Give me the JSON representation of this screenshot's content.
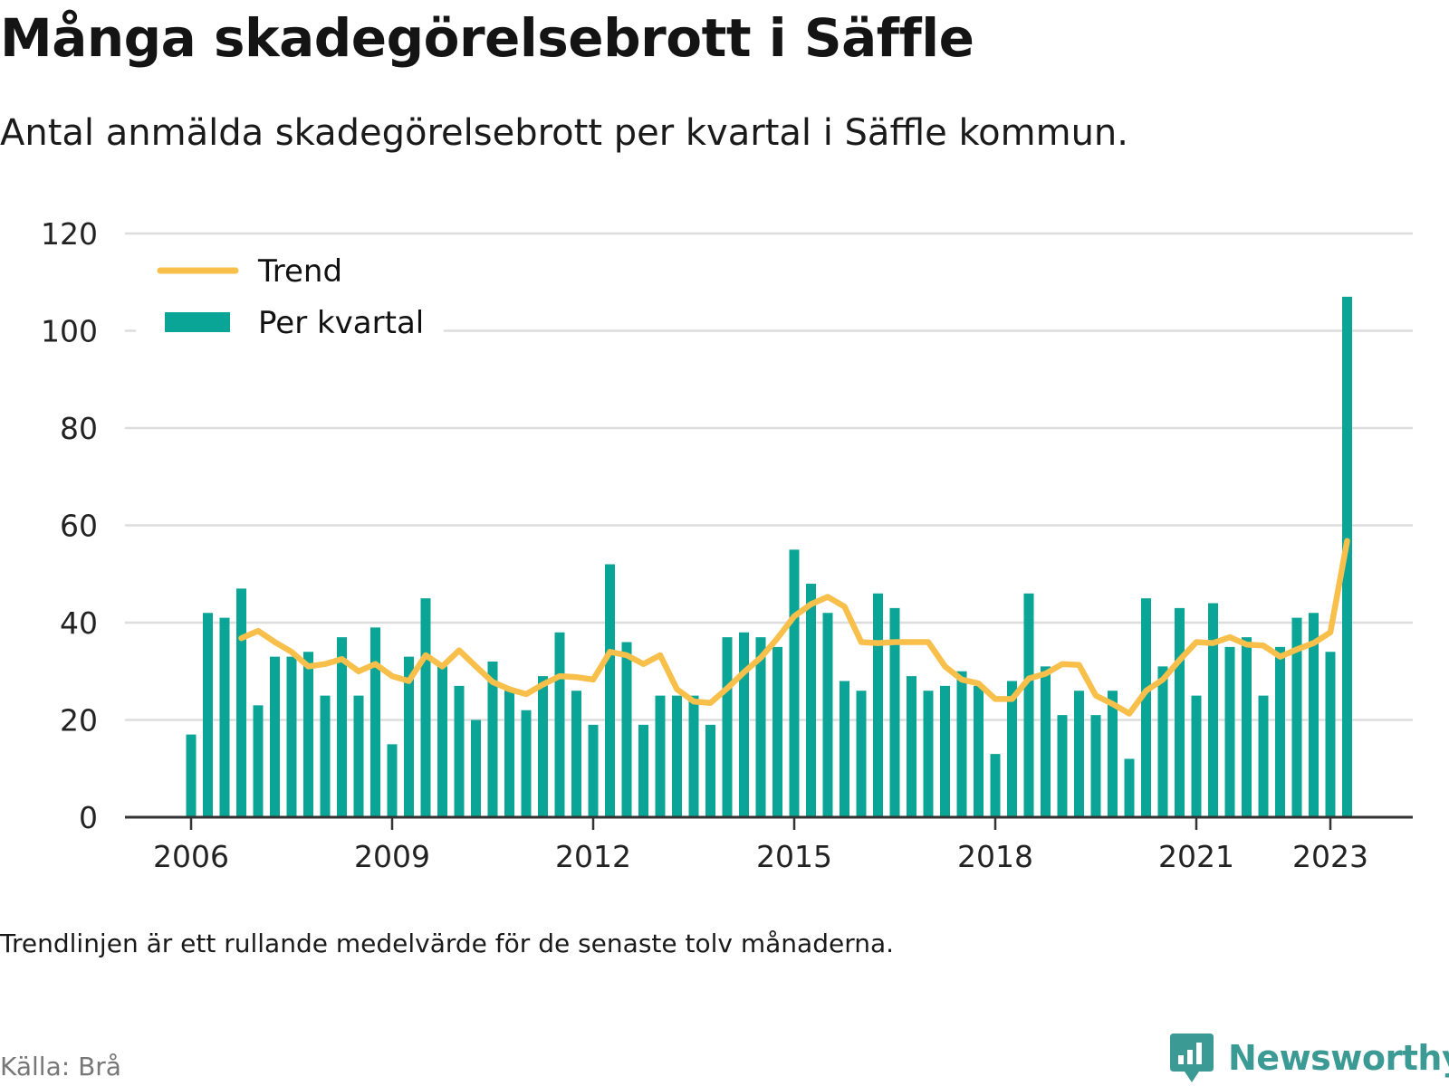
{
  "title": "Många skadegörelsebrott i Säffle",
  "subtitle": "Antal anmälda skadegörelsebrott per kvartal i Säffle kommun.",
  "note": "Trendlinjen är ett rullande medelvärde för de senaste tolv månaderna.",
  "source": "Källa: Brå",
  "brand": "Newsworthy",
  "colors": {
    "bar": "#0aa596",
    "trend": "#f8bf4b",
    "grid": "#dddddd",
    "axis": "#333333",
    "brand": "#3c9a94"
  },
  "legend": [
    {
      "label": "Trend",
      "kind": "line"
    },
    {
      "label": "Per kvartal",
      "kind": "bar"
    }
  ],
  "chart_data": {
    "type": "bar",
    "start": "2006 Q1",
    "interval": "quarter",
    "ylim": [
      0,
      120
    ],
    "yticks": [
      0,
      20,
      40,
      60,
      80,
      100,
      120
    ],
    "xticks": [
      "2006",
      "2009",
      "2012",
      "2015",
      "2018",
      "2021",
      "2023"
    ],
    "grid": true,
    "legend_position": "top-left",
    "series": [
      {
        "name": "Per kvartal",
        "type": "bar",
        "values": [
          17,
          42,
          41,
          47,
          23,
          33,
          33,
          34,
          25,
          37,
          25,
          39,
          15,
          33,
          45,
          31,
          27,
          20,
          32,
          26,
          22,
          29,
          38,
          26,
          19,
          52,
          36,
          19,
          25,
          25,
          25,
          19,
          37,
          38,
          37,
          35,
          55,
          48,
          42,
          28,
          26,
          46,
          43,
          29,
          26,
          27,
          30,
          27,
          13,
          28,
          46,
          31,
          21,
          26,
          21,
          26,
          12,
          45,
          31,
          43,
          25,
          44,
          35,
          37,
          25,
          35,
          41,
          42,
          34,
          107
        ]
      },
      {
        "name": "Trend",
        "type": "line",
        "values": [
          null,
          null,
          null,
          36.8,
          38.3,
          36,
          34,
          31,
          31.5,
          32.5,
          30,
          31.5,
          29,
          28,
          33.3,
          31,
          34.3,
          31,
          27.8,
          26.3,
          25.3,
          27.3,
          29,
          28.8,
          28.3,
          34,
          33.3,
          31.5,
          33.3,
          26.3,
          23.8,
          23.5,
          26.5,
          29.8,
          32.8,
          36.8,
          41.3,
          43.8,
          45.3,
          43.3,
          36,
          35.8,
          36,
          36,
          36,
          31,
          28.3,
          27.5,
          24.3,
          24.3,
          28.5,
          29.5,
          31.5,
          31.3,
          25,
          23.3,
          21.3,
          26,
          28.3,
          32.3,
          36,
          35.8,
          37,
          35.5,
          35.3,
          33,
          34.5,
          35.8,
          38,
          56.8
        ]
      }
    ]
  }
}
